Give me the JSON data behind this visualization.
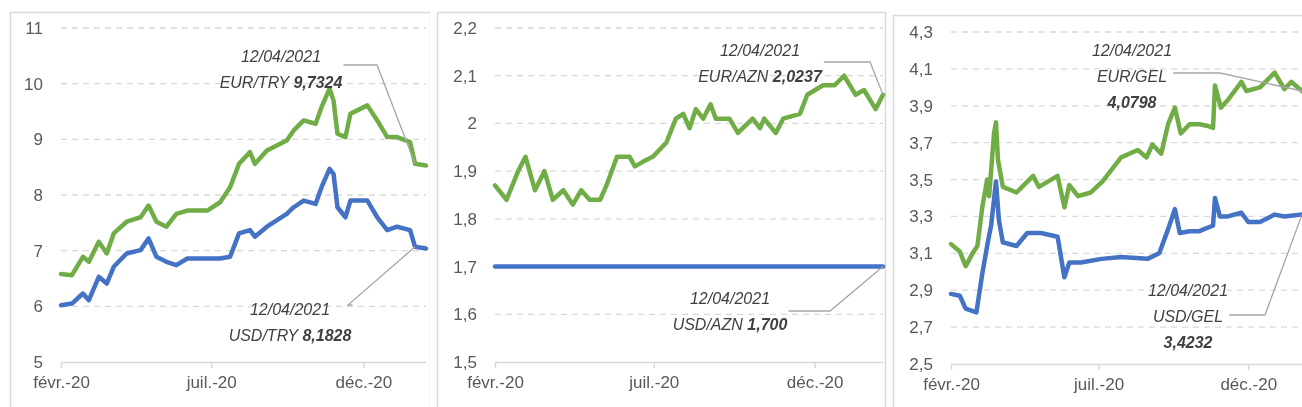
{
  "chart_data": [
    {
      "type": "line",
      "xlim": [
        "2020-02-01",
        "2021-02-02"
      ],
      "ylim": [
        5,
        11
      ],
      "yticks": [
        5,
        6,
        7,
        8,
        9,
        10,
        11
      ],
      "xticks": [
        {
          "value": "2020-02-01",
          "label": "févr.-20"
        },
        {
          "value": "2020-07-01",
          "label": "juil.-20"
        },
        {
          "value": "2020-12-01",
          "label": "déc.-20"
        }
      ],
      "grid": "y",
      "annotations": [
        {
          "text": "12/04/2021\nEUR/TRY 9,7324",
          "x": "2021-01-22",
          "y": 8.56
        },
        {
          "text": "12/04/2021\nUSD/TRY 8,1828",
          "x": "2021-01-22",
          "y": 7.07
        }
      ],
      "series": [
        {
          "color": "#70ad47",
          "x": [
            "2020-02-01",
            "2020-02-12",
            "2020-02-23",
            "2020-02-29",
            "2020-03-10",
            "2020-03-18",
            "2020-03-25",
            "2020-04-07",
            "2020-04-21",
            "2020-04-29",
            "2020-05-07",
            "2020-05-17",
            "2020-05-27",
            "2020-06-07",
            "2020-06-27",
            "2020-07-10",
            "2020-07-20",
            "2020-07-29",
            "2020-08-09",
            "2020-08-14",
            "2020-08-26",
            "2020-09-15",
            "2020-09-22",
            "2020-10-02",
            "2020-10-14",
            "2020-10-20",
            "2020-10-28",
            "2020-11-01",
            "2020-11-05",
            "2020-11-13",
            "2020-11-18",
            "2020-12-05",
            "2020-12-15",
            "2020-12-25",
            "2021-01-04",
            "2021-01-17",
            "2021-01-22",
            "2021-02-02"
          ],
          "values": [
            6.58,
            6.56,
            6.89,
            6.8,
            7.16,
            6.95,
            7.31,
            7.52,
            7.6,
            7.81,
            7.52,
            7.43,
            7.66,
            7.72,
            7.72,
            7.87,
            8.14,
            8.56,
            8.77,
            8.56,
            8.8,
            8.98,
            9.16,
            9.34,
            9.28,
            9.58,
            9.91,
            9.7,
            9.1,
            9.04,
            9.46,
            9.61,
            9.34,
            9.04,
            9.04,
            8.95,
            8.56,
            8.53
          ]
        },
        {
          "color": "#4472c4",
          "x": [
            "2020-02-01",
            "2020-02-12",
            "2020-02-23",
            "2020-02-29",
            "2020-03-10",
            "2020-03-18",
            "2020-03-25",
            "2020-04-07",
            "2020-04-21",
            "2020-04-29",
            "2020-05-07",
            "2020-05-17",
            "2020-05-27",
            "2020-06-07",
            "2020-06-27",
            "2020-07-10",
            "2020-07-20",
            "2020-07-29",
            "2020-08-09",
            "2020-08-14",
            "2020-08-26",
            "2020-09-15",
            "2020-09-22",
            "2020-10-02",
            "2020-10-14",
            "2020-10-20",
            "2020-10-28",
            "2020-11-01",
            "2020-11-05",
            "2020-11-13",
            "2020-11-18",
            "2020-12-05",
            "2020-12-15",
            "2020-12-25",
            "2021-01-04",
            "2021-01-17",
            "2021-01-22",
            "2021-02-02"
          ],
          "values": [
            6.02,
            6.05,
            6.23,
            6.11,
            6.53,
            6.41,
            6.71,
            6.95,
            7.01,
            7.22,
            6.89,
            6.8,
            6.74,
            6.86,
            6.86,
            6.86,
            6.89,
            7.31,
            7.37,
            7.25,
            7.43,
            7.66,
            7.78,
            7.9,
            7.84,
            8.14,
            8.47,
            8.38,
            7.78,
            7.6,
            7.9,
            7.9,
            7.6,
            7.37,
            7.43,
            7.37,
            7.07,
            7.04
          ]
        }
      ]
    },
    {
      "type": "line",
      "xlim": [
        "2020-02-01",
        "2021-02-04"
      ],
      "ylim": [
        1.5,
        2.2
      ],
      "yticks": [
        {
          "value": 1.5,
          "label": "1,5"
        },
        {
          "value": 1.6,
          "label": "1,6"
        },
        {
          "value": 1.7,
          "label": "1,7"
        },
        {
          "value": 1.8,
          "label": "1,8"
        },
        {
          "value": 1.9,
          "label": "1,9"
        },
        2,
        {
          "value": 2.1,
          "label": "2,1"
        },
        {
          "value": 2.2,
          "label": "2,2"
        }
      ],
      "xticks": [
        {
          "value": "2020-02-01",
          "label": "févr.-20"
        },
        {
          "value": "2020-07-01",
          "label": "juil.-20"
        },
        {
          "value": "2020-12-01",
          "label": "déc.-20"
        }
      ],
      "grid": "y",
      "annotations": [
        {
          "text": "12/04/2021\nEUR/AZN 2,0237",
          "x": "2021-02-04",
          "y": 2.06
        },
        {
          "text": "12/04/2021\nUSD/AZN  1,700",
          "x": "2021-02-04",
          "y": 1.7
        }
      ],
      "series": [
        {
          "color": "#70ad47",
          "x": [
            "2020-02-01",
            "2020-02-12",
            "2020-02-23",
            "2020-03-01",
            "2020-03-10",
            "2020-03-19",
            "2020-03-27",
            "2020-04-06",
            "2020-04-15",
            "2020-04-23",
            "2020-05-01",
            "2020-05-11",
            "2020-05-17",
            "2020-05-27",
            "2020-06-08",
            "2020-06-13",
            "2020-06-21",
            "2020-06-30",
            "2020-07-13",
            "2020-07-22",
            "2020-07-29",
            "2020-08-04",
            "2020-08-10",
            "2020-08-17",
            "2020-08-24",
            "2020-08-29",
            "2020-09-11",
            "2020-09-19",
            "2020-10-03",
            "2020-10-10",
            "2020-10-14",
            "2020-10-25",
            "2020-11-01",
            "2020-11-17",
            "2020-11-24",
            "2020-12-09",
            "2020-12-20",
            "2020-12-29",
            "2021-01-09",
            "2021-01-17",
            "2021-01-28",
            "2021-02-04"
          ],
          "values": [
            1.87,
            1.84,
            1.9,
            1.93,
            1.86,
            1.9,
            1.84,
            1.86,
            1.83,
            1.86,
            1.84,
            1.84,
            1.87,
            1.93,
            1.93,
            1.91,
            1.92,
            1.93,
            1.96,
            2.01,
            2.02,
            1.99,
            2.03,
            2.01,
            2.04,
            2.01,
            2.01,
            1.98,
            2.01,
            1.99,
            2.01,
            1.98,
            2.01,
            2.02,
            2.06,
            2.08,
            2.08,
            2.1,
            2.06,
            2.07,
            2.03,
            2.06
          ]
        },
        {
          "color": "#4472c4",
          "x": [
            "2020-02-01",
            "2021-02-04"
          ],
          "values": [
            1.7,
            1.7
          ]
        }
      ]
    },
    {
      "type": "line",
      "xlim": [
        "2020-02-01",
        "2021-01-25"
      ],
      "ylim": [
        2.5,
        4.3
      ],
      "yticks": [
        {
          "value": 2.5,
          "label": "2,5"
        },
        {
          "value": 2.7,
          "label": "2,7"
        },
        {
          "value": 2.9,
          "label": "2,9"
        },
        {
          "value": 3.1,
          "label": "3,1"
        },
        {
          "value": 3.3,
          "label": "3,3"
        },
        {
          "value": 3.5,
          "label": "3,5"
        },
        {
          "value": 3.7,
          "label": "3,7"
        },
        {
          "value": 3.9,
          "label": "3,9"
        },
        {
          "value": 4.1,
          "label": "4,1"
        },
        {
          "value": 4.3,
          "label": "4,3"
        }
      ],
      "xticks": [
        {
          "value": "2020-02-01",
          "label": "févr.-20"
        },
        {
          "value": "2020-07-01",
          "label": "juil.-20"
        },
        {
          "value": "2020-12-01",
          "label": "déc.-20"
        }
      ],
      "grid": "y",
      "annotations": [
        {
          "text": "12/04/2021\nEUR/GEL\n4,0798",
          "x": "2021-01-25",
          "y": 3.98
        },
        {
          "text": "12/04/2021\nUSD/GEL\n3,4232",
          "x": "2021-01-25",
          "y": 3.31
        }
      ],
      "series": [
        {
          "color": "#70ad47",
          "x": [
            "2020-02-01",
            "2020-02-10",
            "2020-02-16",
            "2020-02-23",
            "2020-02-28",
            "2020-03-04",
            "2020-03-09",
            "2020-03-11",
            "2020-03-16",
            "2020-03-18",
            "2020-03-20",
            "2020-03-25",
            "2020-04-08",
            "2020-04-25",
            "2020-05-01",
            "2020-05-20",
            "2020-05-27",
            "2020-06-01",
            "2020-06-10",
            "2020-06-23",
            "2020-07-05",
            "2020-07-24",
            "2020-08-10",
            "2020-08-19",
            "2020-08-25",
            "2020-09-03",
            "2020-09-10",
            "2020-09-17",
            "2020-09-23",
            "2020-10-02",
            "2020-10-12",
            "2020-10-21",
            "2020-10-26",
            "2020-10-28",
            "2020-11-03",
            "2020-11-10",
            "2020-11-24",
            "2020-11-29",
            "2020-12-13",
            "2020-12-28",
            "2021-01-07",
            "2021-01-14",
            "2021-01-25"
          ],
          "values": [
            3.15,
            3.11,
            3.03,
            3.1,
            3.14,
            3.35,
            3.5,
            3.41,
            3.75,
            3.81,
            3.61,
            3.46,
            3.43,
            3.52,
            3.46,
            3.52,
            3.35,
            3.47,
            3.41,
            3.43,
            3.49,
            3.62,
            3.66,
            3.62,
            3.69,
            3.64,
            3.8,
            3.89,
            3.75,
            3.8,
            3.8,
            3.79,
            3.78,
            4.01,
            3.89,
            3.93,
            4.03,
            3.98,
            4,
            4.08,
            3.99,
            4.03,
            3.98
          ]
        },
        {
          "color": "#4472c4",
          "x": [
            "2020-02-01",
            "2020-02-10",
            "2020-02-16",
            "2020-02-27",
            "2020-03-04",
            "2020-03-10",
            "2020-03-13",
            "2020-03-18",
            "2020-03-21",
            "2020-03-25",
            "2020-04-08",
            "2020-04-19",
            "2020-05-03",
            "2020-05-20",
            "2020-05-27",
            "2020-06-01",
            "2020-06-13",
            "2020-07-04",
            "2020-07-24",
            "2020-08-20",
            "2020-09-01",
            "2020-09-10",
            "2020-09-17",
            "2020-09-22",
            "2020-10-02",
            "2020-10-12",
            "2020-10-21",
            "2020-10-26",
            "2020-10-28",
            "2020-11-02",
            "2020-11-10",
            "2020-11-24",
            "2020-12-01",
            "2020-12-13",
            "2020-12-28",
            "2021-01-07",
            "2021-01-25"
          ],
          "values": [
            2.88,
            2.87,
            2.8,
            2.78,
            2.99,
            3.17,
            3.25,
            3.49,
            3.28,
            3.16,
            3.14,
            3.21,
            3.21,
            3.19,
            2.97,
            3.05,
            3.05,
            3.07,
            3.08,
            3.07,
            3.1,
            3.23,
            3.34,
            3.21,
            3.22,
            3.22,
            3.24,
            3.25,
            3.4,
            3.3,
            3.3,
            3.32,
            3.27,
            3.27,
            3.31,
            3.3,
            3.31
          ]
        }
      ]
    }
  ]
}
